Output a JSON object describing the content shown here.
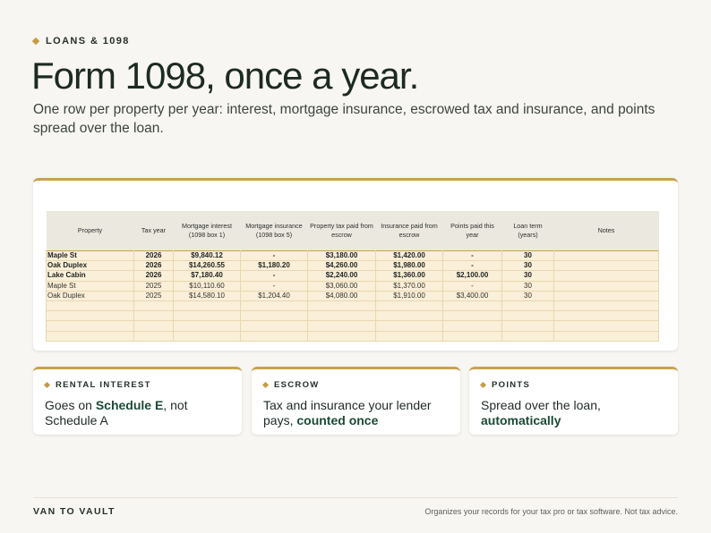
{
  "eyebrow": "LOANS & 1098",
  "title": "Form 1098, once a year.",
  "subtitle": "One row per property per year: interest, mortgage insurance, escrowed tax and insurance, and points spread over the loan.",
  "table": {
    "headers": [
      "Property",
      "Tax year",
      "Mortgage interest (1098 box 1)",
      "Mortgage insurance (1098 box 5)",
      "Property tax paid from escrow",
      "Insurance paid from escrow",
      "Points paid this year",
      "Loan term (years)",
      "Notes"
    ],
    "rows": [
      [
        "Maple St",
        "2026",
        "$9,840.12",
        "-",
        "$3,180.00",
        "$1,420.00",
        "-",
        "30",
        ""
      ],
      [
        "Oak Duplex",
        "2026",
        "$14,260.55",
        "$1,180.20",
        "$4,260.00",
        "$1,980.00",
        "-",
        "30",
        ""
      ],
      [
        "Lake Cabin",
        "2026",
        "$7,180.40",
        "-",
        "$2,240.00",
        "$1,360.00",
        "$2,100.00",
        "30",
        ""
      ],
      [
        "Maple St",
        "2025",
        "$10,110.60",
        "-",
        "$3,060.00",
        "$1,370.00",
        "-",
        "30",
        ""
      ],
      [
        "Oak Duplex",
        "2025",
        "$14,580.10",
        "$1,204.40",
        "$4,080.00",
        "$1,910.00",
        "$3,400.00",
        "30",
        ""
      ],
      [
        "",
        "",
        "",
        "",
        "",
        "",
        "",
        "",
        ""
      ],
      [
        "",
        "",
        "",
        "",
        "",
        "",
        "",
        "",
        ""
      ],
      [
        "",
        "",
        "",
        "",
        "",
        "",
        "",
        "",
        ""
      ],
      [
        "",
        "",
        "",
        "",
        "",
        "",
        "",
        "",
        ""
      ]
    ]
  },
  "features": [
    {
      "label": "RENTAL INTEREST",
      "pre": "Goes on ",
      "em": "Schedule E",
      "post": ", not Schedule A"
    },
    {
      "label": "ESCROW",
      "pre": "Tax and insurance your lender pays, ",
      "em": "counted once",
      "post": ""
    },
    {
      "label": "POINTS",
      "pre": "Spread over the loan, ",
      "em": "automatically",
      "post": ""
    }
  ],
  "footer": {
    "brand": "VAN TO VAULT",
    "disclaimer": "Organizes your records for your tax pro or tax software. Not tax advice."
  },
  "colors": {
    "accent": "#c9a24e",
    "brand_green": "#1b4a35",
    "row_fill": "#faefd8",
    "header_fill": "#ebe8df"
  }
}
